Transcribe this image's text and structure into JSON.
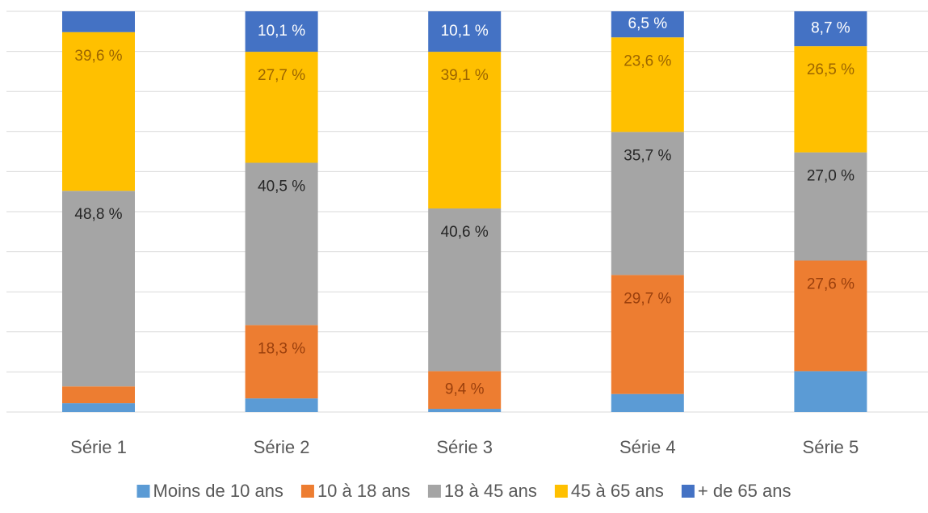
{
  "chart_data": {
    "type": "stacked_bar",
    "categories": [
      "Série 1",
      "Série 2",
      "Série 3",
      "Série 4",
      "Série 5"
    ],
    "series": [
      {
        "name": "Moins de 10 ans",
        "color": "#5b9bd5",
        "label_color": "#ffffff",
        "values": [
          2.2,
          3.4,
          0.8,
          4.5,
          10.2
        ],
        "value_labels": [
          null,
          null,
          null,
          null,
          null
        ]
      },
      {
        "name": "10 à 18 ans",
        "color": "#ed7d31",
        "label_color": "#9a3f0c",
        "values": [
          4.2,
          18.3,
          9.4,
          29.7,
          27.6
        ],
        "value_labels": [
          null,
          "18,3 %",
          "9,4 %",
          "29,7 %",
          "27,6 %"
        ]
      },
      {
        "name": "18 à 45 ans",
        "color": "#a5a5a5",
        "label_color": "#262626",
        "values": [
          48.8,
          40.5,
          40.6,
          35.7,
          27.0
        ],
        "value_labels": [
          "48,8 %",
          "40,5 %",
          "40,6 %",
          "35,7 %",
          "27,0 %"
        ]
      },
      {
        "name": "45 à 65 ans",
        "color": "#ffc000",
        "label_color": "#9c6500",
        "values": [
          39.6,
          27.7,
          39.1,
          23.6,
          26.5
        ],
        "value_labels": [
          "39,6 %",
          "27,7 %",
          "39,1 %",
          "23,6 %",
          "26,5 %"
        ]
      },
      {
        "name": "+ de 65 ans",
        "color": "#4472c4",
        "label_color": "#ffffff",
        "values": [
          5.2,
          10.1,
          10.1,
          6.5,
          8.7
        ],
        "value_labels": [
          null,
          "10,1 %",
          "10,1 %",
          "6,5 %",
          "8,7 %"
        ]
      }
    ],
    "ylim": [
      0,
      100
    ],
    "yticks": [
      0,
      10,
      20,
      30,
      40,
      50,
      60,
      70,
      80,
      90,
      100
    ],
    "grid": true,
    "legend": "bottom"
  }
}
